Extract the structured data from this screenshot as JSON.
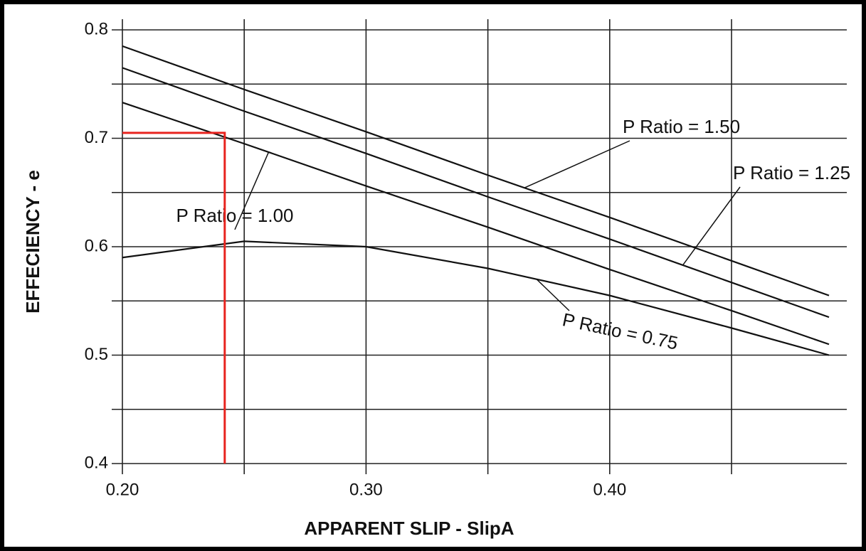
{
  "chart_data": {
    "type": "line",
    "x_label": "APPARENT SLIP - SlipA",
    "y_label": "EFFECIENCY - e",
    "x": [
      0.2,
      0.25,
      0.3,
      0.35,
      0.4,
      0.45,
      0.49
    ],
    "series": [
      {
        "name": "P Ratio = 1.50",
        "color": "#111111",
        "values": [
          0.785,
          0.745,
          0.706,
          0.666,
          0.627,
          0.587,
          0.555
        ]
      },
      {
        "name": "P Ratio = 1.25",
        "color": "#111111",
        "values": [
          0.765,
          0.725,
          0.686,
          0.646,
          0.607,
          0.567,
          0.535
        ]
      },
      {
        "name": "P Ratio = 1.00",
        "color": "#111111",
        "values": [
          0.733,
          0.695,
          0.656,
          0.618,
          0.579,
          0.541,
          0.51
        ]
      },
      {
        "name": "P Ratio = 0.75",
        "color": "#111111",
        "values": [
          0.59,
          0.605,
          0.6,
          0.58,
          0.555,
          0.525,
          0.5
        ]
      }
    ],
    "annotation_point": {
      "x": 0.242,
      "y": 0.705,
      "color": "#e8231e"
    },
    "xlim": [
      0.2,
      0.49
    ],
    "ylim": [
      0.4,
      0.8
    ],
    "xticks": [
      {
        "value": 0.2,
        "label": "0.20"
      },
      {
        "value": 0.3,
        "label": "0.30"
      },
      {
        "value": 0.4,
        "label": "0.40"
      }
    ],
    "yticks": [
      0.4,
      0.5,
      0.6,
      0.7,
      0.8
    ],
    "minor_xgrid": [
      0.25,
      0.35,
      0.45
    ],
    "minor_ygrid": [
      0.45,
      0.55,
      0.65,
      0.75
    ],
    "grid": true
  }
}
